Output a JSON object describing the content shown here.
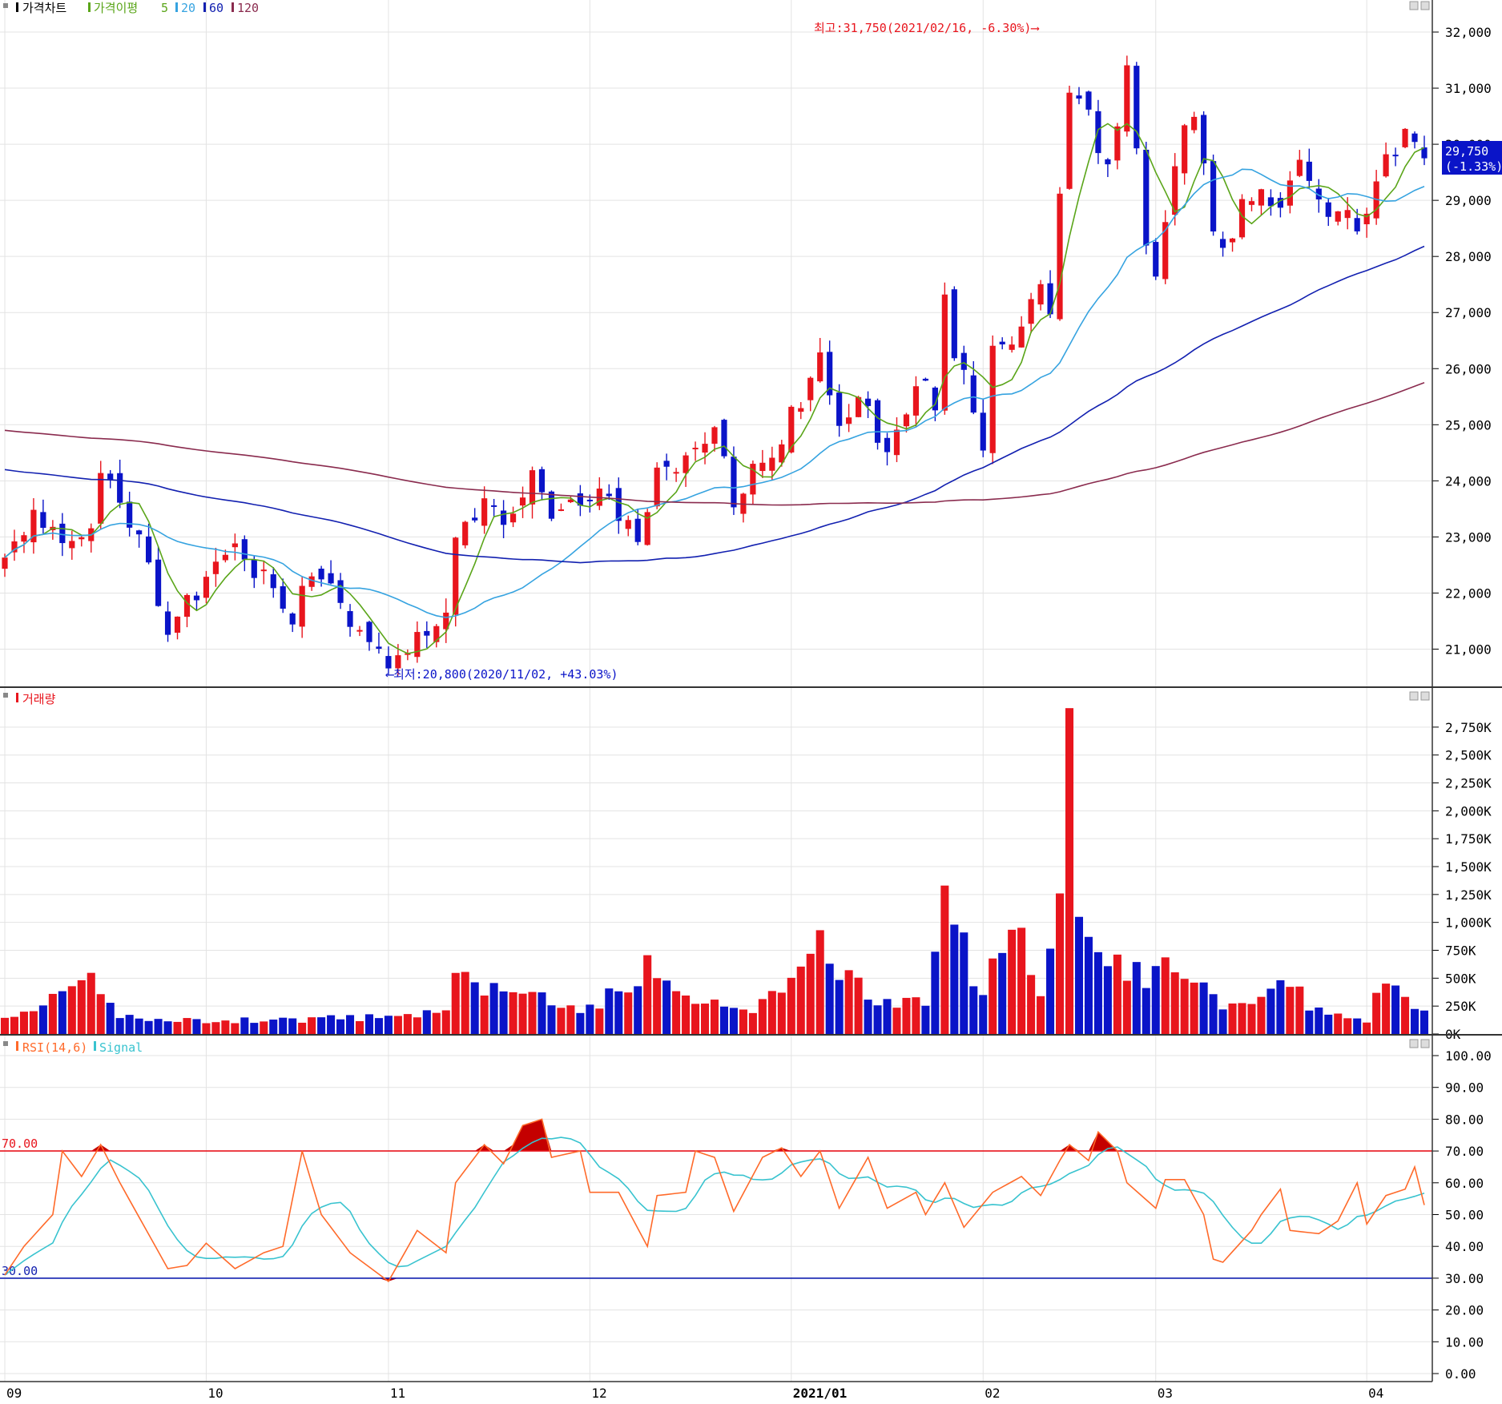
{
  "colors": {
    "up": "#e8151d",
    "down": "#0a14c8",
    "ma5": "#5aa519",
    "ma20": "#36a3e0",
    "ma60": "#1220b0",
    "ma120": "#8a2b4e",
    "rsi": "#ff6a2a",
    "signal": "#38c3cf",
    "grid": "#e3e3e3",
    "axis": "#000000"
  },
  "price_panel": {
    "legend": [
      {
        "text": "가격차트",
        "color": "#000000"
      },
      {
        "text": "가격이평",
        "color": "#5aa519"
      },
      {
        "text": "5",
        "color": "#5aa519"
      },
      {
        "text": "20",
        "color": "#36a3e0"
      },
      {
        "text": "60",
        "color": "#1220b0"
      },
      {
        "text": "120",
        "color": "#8a2b4e"
      }
    ],
    "ticks": [
      "32,000",
      "31,000",
      "30,000",
      "29,000",
      "28,000",
      "27,000",
      "26,000",
      "25,000",
      "24,000",
      "23,000",
      "22,000",
      "21,000"
    ],
    "tick_values": [
      32000,
      31000,
      30000,
      29000,
      28000,
      27000,
      26000,
      25000,
      24000,
      23000,
      22000,
      21000
    ],
    "ylim": [
      20550,
      32400
    ],
    "high_annotation": "최고:31,750(2021/02/16, -6.30%)⟶",
    "low_annotation": "⟵최저:20,800(2020/11/02, +43.03%)",
    "current_price": "29,750",
    "current_change": "(-1.33%)"
  },
  "volume_panel": {
    "legend": "거래량",
    "ticks": [
      "2,750K",
      "2,500K",
      "2,250K",
      "2,000K",
      "1,750K",
      "1,500K",
      "1,250K",
      "1,000K",
      "750K",
      "500K",
      "250K",
      "0K"
    ],
    "tick_values": [
      2750,
      2500,
      2250,
      2000,
      1750,
      1500,
      1250,
      1000,
      750,
      500,
      250,
      0
    ],
    "ylim": [
      0,
      2950
    ]
  },
  "rsi_panel": {
    "legend_rsi": "RSI(14,6)",
    "legend_signal": "Signal",
    "ticks": [
      "100.00",
      "90.00",
      "80.00",
      "70.00",
      "60.00",
      "50.00",
      "40.00",
      "30.00",
      "20.00",
      "10.00",
      "0.00"
    ],
    "tick_values": [
      100,
      90,
      80,
      70,
      60,
      50,
      40,
      30,
      20,
      10,
      0
    ],
    "ylim": [
      0,
      100
    ],
    "upper_level": 70,
    "lower_level": 30,
    "upper_label": "70.00",
    "lower_label": "30.00"
  },
  "x_axis": {
    "labels": [
      {
        "text": "09",
        "index": 0
      },
      {
        "text": "10",
        "index": 21
      },
      {
        "text": "11",
        "index": 40
      },
      {
        "text": "12",
        "index": 61
      },
      {
        "text": "2021/01",
        "index": 82
      },
      {
        "text": "02",
        "index": 102
      },
      {
        "text": "03",
        "index": 120
      },
      {
        "text": "04",
        "index": 142
      }
    ]
  },
  "chart_data": {
    "type": "candlestick",
    "points": 149,
    "price_series": [
      {
        "index": 0,
        "anchor": 22500
      },
      {
        "index": 3,
        "anchor": 23500
      },
      {
        "index": 6,
        "anchor": 23000
      },
      {
        "index": 9,
        "anchor": 23300
      },
      {
        "index": 10,
        "anchor": 24200
      },
      {
        "index": 12,
        "anchor": 23700
      },
      {
        "index": 14,
        "anchor": 23000
      },
      {
        "index": 17,
        "anchor": 21400
      },
      {
        "index": 19,
        "anchor": 21800
      },
      {
        "index": 24,
        "anchor": 22700
      },
      {
        "index": 27,
        "anchor": 22300
      },
      {
        "index": 30,
        "anchor": 21600
      },
      {
        "index": 32,
        "anchor": 22500
      },
      {
        "index": 34,
        "anchor": 22000
      },
      {
        "index": 37,
        "anchor": 21300
      },
      {
        "index": 40,
        "anchor": 20900
      },
      {
        "index": 44,
        "anchor": 21300
      },
      {
        "index": 46,
        "anchor": 21800
      },
      {
        "index": 47,
        "anchor": 22900
      },
      {
        "index": 50,
        "anchor": 23600
      },
      {
        "index": 52,
        "anchor": 23300
      },
      {
        "index": 55,
        "anchor": 24100
      },
      {
        "index": 57,
        "anchor": 23400
      },
      {
        "index": 61,
        "anchor": 23800
      },
      {
        "index": 64,
        "anchor": 23400
      },
      {
        "index": 66,
        "anchor": 23000
      },
      {
        "index": 68,
        "anchor": 24200
      },
      {
        "index": 72,
        "anchor": 24500
      },
      {
        "index": 74,
        "anchor": 24900
      },
      {
        "index": 76,
        "anchor": 23700
      },
      {
        "index": 79,
        "anchor": 24400
      },
      {
        "index": 82,
        "anchor": 25100
      },
      {
        "index": 85,
        "anchor": 26300
      },
      {
        "index": 87,
        "anchor": 25000
      },
      {
        "index": 90,
        "anchor": 25500
      },
      {
        "index": 92,
        "anchor": 24300
      },
      {
        "index": 95,
        "anchor": 25800
      },
      {
        "index": 97,
        "anchor": 25300
      },
      {
        "index": 98,
        "anchor": 27200
      },
      {
        "index": 99,
        "anchor": 26200
      },
      {
        "index": 101,
        "anchor": 25300
      },
      {
        "index": 102,
        "anchor": 24300
      },
      {
        "index": 103,
        "anchor": 26300
      },
      {
        "index": 106,
        "anchor": 26800
      },
      {
        "index": 108,
        "anchor": 27500
      },
      {
        "index": 109,
        "anchor": 27000
      },
      {
        "index": 110,
        "anchor": 28900
      },
      {
        "index": 111,
        "anchor": 30900
      },
      {
        "index": 113,
        "anchor": 30500
      },
      {
        "index": 115,
        "anchor": 29600
      },
      {
        "index": 117,
        "anchor": 31200
      },
      {
        "index": 118,
        "anchor": 29800
      },
      {
        "index": 119,
        "anchor": 28300
      },
      {
        "index": 120,
        "anchor": 27800
      },
      {
        "index": 122,
        "anchor": 29800
      },
      {
        "index": 124,
        "anchor": 30500
      },
      {
        "index": 126,
        "anchor": 28600
      },
      {
        "index": 127,
        "anchor": 28000
      },
      {
        "index": 129,
        "anchor": 28800
      },
      {
        "index": 131,
        "anchor": 29300
      },
      {
        "index": 133,
        "anchor": 28900
      },
      {
        "index": 135,
        "anchor": 29500
      },
      {
        "index": 137,
        "anchor": 28800
      },
      {
        "index": 139,
        "anchor": 29000
      },
      {
        "index": 141,
        "anchor": 28600
      },
      {
        "index": 143,
        "anchor": 29200
      },
      {
        "index": 145,
        "anchor": 30000
      },
      {
        "index": 147,
        "anchor": 30100
      },
      {
        "index": 148,
        "anchor": 29750
      }
    ],
    "volume_anchors_k": [
      {
        "index": 0,
        "v": 120
      },
      {
        "index": 9,
        "v": 440
      },
      {
        "index": 12,
        "v": 180
      },
      {
        "index": 20,
        "v": 110
      },
      {
        "index": 30,
        "v": 130
      },
      {
        "index": 40,
        "v": 150
      },
      {
        "index": 46,
        "v": 200
      },
      {
        "index": 47,
        "v": 460
      },
      {
        "index": 50,
        "v": 440
      },
      {
        "index": 55,
        "v": 350
      },
      {
        "index": 61,
        "v": 220
      },
      {
        "index": 68,
        "v": 650
      },
      {
        "index": 72,
        "v": 360
      },
      {
        "index": 78,
        "v": 240
      },
      {
        "index": 82,
        "v": 420
      },
      {
        "index": 84,
        "v": 600
      },
      {
        "index": 85,
        "v": 930
      },
      {
        "index": 86,
        "v": 580
      },
      {
        "index": 90,
        "v": 360
      },
      {
        "index": 96,
        "v": 250
      },
      {
        "index": 98,
        "v": 1330
      },
      {
        "index": 99,
        "v": 980
      },
      {
        "index": 102,
        "v": 310
      },
      {
        "index": 103,
        "v": 730
      },
      {
        "index": 106,
        "v": 780
      },
      {
        "index": 108,
        "v": 330
      },
      {
        "index": 110,
        "v": 1030
      },
      {
        "index": 111,
        "v": 2920
      },
      {
        "index": 112,
        "v": 980
      },
      {
        "index": 116,
        "v": 610
      },
      {
        "index": 120,
        "v": 510
      },
      {
        "index": 121,
        "v": 760
      },
      {
        "index": 124,
        "v": 460
      },
      {
        "index": 127,
        "v": 220
      },
      {
        "index": 131,
        "v": 300
      },
      {
        "index": 134,
        "v": 430
      },
      {
        "index": 137,
        "v": 200
      },
      {
        "index": 142,
        "v": 130
      },
      {
        "index": 143,
        "v": 330
      },
      {
        "index": 145,
        "v": 440
      },
      {
        "index": 146,
        "v": 310
      },
      {
        "index": 148,
        "v": 200
      }
    ],
    "rsi_anchors": [
      {
        "index": 0,
        "v": 31
      },
      {
        "index": 2,
        "v": 40
      },
      {
        "index": 5,
        "v": 50
      },
      {
        "index": 6,
        "v": 70
      },
      {
        "index": 8,
        "v": 62
      },
      {
        "index": 10,
        "v": 72
      },
      {
        "index": 12,
        "v": 60
      },
      {
        "index": 17,
        "v": 33
      },
      {
        "index": 19,
        "v": 34
      },
      {
        "index": 21,
        "v": 41
      },
      {
        "index": 24,
        "v": 33
      },
      {
        "index": 27,
        "v": 38
      },
      {
        "index": 29,
        "v": 40
      },
      {
        "index": 31,
        "v": 70
      },
      {
        "index": 33,
        "v": 50
      },
      {
        "index": 36,
        "v": 38
      },
      {
        "index": 40,
        "v": 29
      },
      {
        "index": 43,
        "v": 45
      },
      {
        "index": 46,
        "v": 38
      },
      {
        "index": 47,
        "v": 60
      },
      {
        "index": 50,
        "v": 72
      },
      {
        "index": 52,
        "v": 66
      },
      {
        "index": 54,
        "v": 78
      },
      {
        "index": 56,
        "v": 80
      },
      {
        "index": 57,
        "v": 68
      },
      {
        "index": 60,
        "v": 70
      },
      {
        "index": 61,
        "v": 57
      },
      {
        "index": 64,
        "v": 57
      },
      {
        "index": 67,
        "v": 40
      },
      {
        "index": 68,
        "v": 56
      },
      {
        "index": 71,
        "v": 57
      },
      {
        "index": 72,
        "v": 70
      },
      {
        "index": 74,
        "v": 68
      },
      {
        "index": 76,
        "v": 51
      },
      {
        "index": 79,
        "v": 68
      },
      {
        "index": 81,
        "v": 71
      },
      {
        "index": 83,
        "v": 62
      },
      {
        "index": 85,
        "v": 70
      },
      {
        "index": 87,
        "v": 52
      },
      {
        "index": 90,
        "v": 68
      },
      {
        "index": 92,
        "v": 52
      },
      {
        "index": 95,
        "v": 57
      },
      {
        "index": 96,
        "v": 50
      },
      {
        "index": 98,
        "v": 60
      },
      {
        "index": 100,
        "v": 46
      },
      {
        "index": 103,
        "v": 57
      },
      {
        "index": 106,
        "v": 62
      },
      {
        "index": 108,
        "v": 56
      },
      {
        "index": 110,
        "v": 67
      },
      {
        "index": 111,
        "v": 72
      },
      {
        "index": 113,
        "v": 67
      },
      {
        "index": 114,
        "v": 76
      },
      {
        "index": 116,
        "v": 70
      },
      {
        "index": 117,
        "v": 60
      },
      {
        "index": 120,
        "v": 52
      },
      {
        "index": 121,
        "v": 61
      },
      {
        "index": 123,
        "v": 61
      },
      {
        "index": 125,
        "v": 50
      },
      {
        "index": 126,
        "v": 36
      },
      {
        "index": 127,
        "v": 35
      },
      {
        "index": 130,
        "v": 45
      },
      {
        "index": 131,
        "v": 50
      },
      {
        "index": 133,
        "v": 58
      },
      {
        "index": 134,
        "v": 45
      },
      {
        "index": 137,
        "v": 44
      },
      {
        "index": 139,
        "v": 48
      },
      {
        "index": 141,
        "v": 60
      },
      {
        "index": 142,
        "v": 47
      },
      {
        "index": 144,
        "v": 56
      },
      {
        "index": 146,
        "v": 58
      },
      {
        "index": 147,
        "v": 65
      },
      {
        "index": 148,
        "v": 53
      }
    ]
  }
}
